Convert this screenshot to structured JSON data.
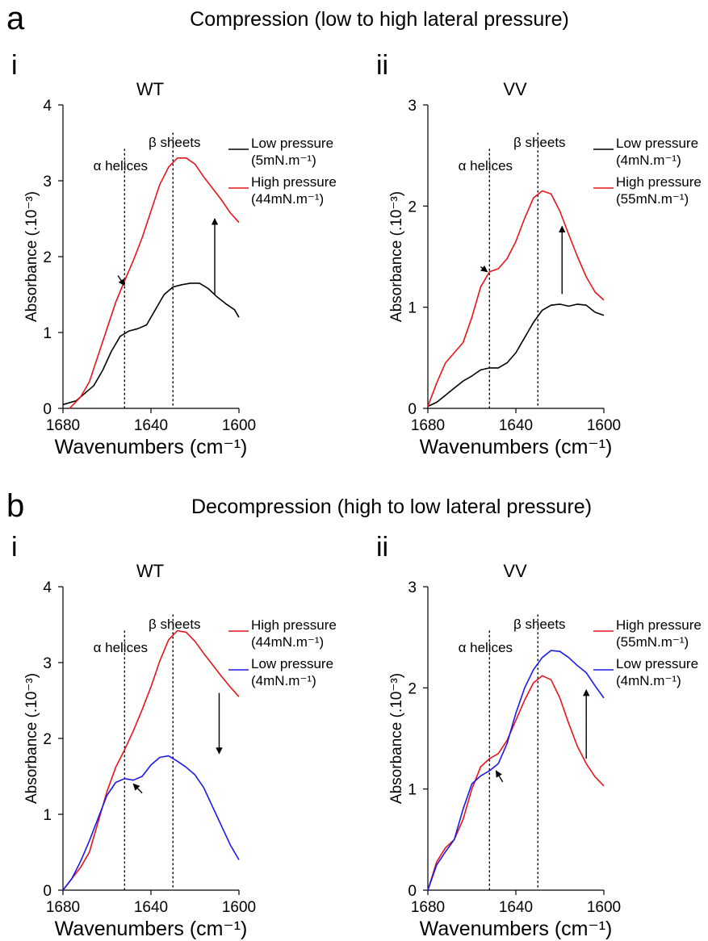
{
  "figure": {
    "section_a": {
      "letter": "a",
      "title": "Compression (low to high lateral pressure)"
    },
    "section_b": {
      "letter": "b",
      "title": "Decompression (high to low lateral pressure)"
    }
  },
  "colors": {
    "red": "#e8141a",
    "black": "#000000",
    "blue": "#1a1ae6"
  },
  "chart_data": [
    {
      "id": "a-i",
      "type": "line",
      "panel_label": "i",
      "title": "WT",
      "xlabel": "Wavenumbers (cm⁻¹)",
      "ylabel": "Absorbance (.10⁻³)",
      "xlim": [
        1680,
        1600
      ],
      "x_reversed": true,
      "ylim": [
        0,
        4
      ],
      "xticks": [
        1680,
        1640,
        1600
      ],
      "yticks": [
        0,
        1,
        2,
        3,
        4
      ],
      "vlines": [
        {
          "x": 1652,
          "label": "α helices"
        },
        {
          "x": 1630,
          "label": "β sheets"
        }
      ],
      "legend_position": "top-right",
      "series": [
        {
          "name": "Low pressure (5mN.m⁻¹)",
          "legend": [
            "Low pressure",
            "(5mN.m⁻¹)"
          ],
          "color": "#000000",
          "points": [
            [
              1680,
              0.05
            ],
            [
              1674,
              0.1
            ],
            [
              1670,
              0.2
            ],
            [
              1666,
              0.3
            ],
            [
              1662,
              0.5
            ],
            [
              1658,
              0.75
            ],
            [
              1654,
              0.95
            ],
            [
              1650,
              1.02
            ],
            [
              1646,
              1.05
            ],
            [
              1642,
              1.1
            ],
            [
              1638,
              1.3
            ],
            [
              1634,
              1.5
            ],
            [
              1630,
              1.6
            ],
            [
              1626,
              1.63
            ],
            [
              1622,
              1.65
            ],
            [
              1618,
              1.65
            ],
            [
              1614,
              1.58
            ],
            [
              1610,
              1.47
            ],
            [
              1606,
              1.38
            ],
            [
              1602,
              1.3
            ],
            [
              1600,
              1.2
            ]
          ]
        },
        {
          "name": "High pressure (44mN.m⁻¹)",
          "legend": [
            "High pressure",
            "(44mN.m⁻¹)"
          ],
          "color": "#e8141a",
          "points": [
            [
              1677,
              0
            ],
            [
              1672,
              0.15
            ],
            [
              1668,
              0.35
            ],
            [
              1664,
              0.7
            ],
            [
              1660,
              1.05
            ],
            [
              1656,
              1.4
            ],
            [
              1652,
              1.68
            ],
            [
              1648,
              1.95
            ],
            [
              1644,
              2.25
            ],
            [
              1640,
              2.6
            ],
            [
              1636,
              2.95
            ],
            [
              1632,
              3.18
            ],
            [
              1628,
              3.3
            ],
            [
              1624,
              3.3
            ],
            [
              1620,
              3.22
            ],
            [
              1616,
              3.05
            ],
            [
              1612,
              2.9
            ],
            [
              1608,
              2.75
            ],
            [
              1604,
              2.58
            ],
            [
              1600,
              2.45
            ]
          ]
        }
      ],
      "arrows": [
        {
          "kind": "vertical-up",
          "x": 1611,
          "from": 1.5,
          "to": 2.5
        },
        {
          "kind": "short",
          "x1": 1655,
          "y1": 1.75,
          "x2": 1652,
          "y2": 1.62
        }
      ]
    },
    {
      "id": "a-ii",
      "type": "line",
      "panel_label": "ii",
      "title": "VV",
      "xlabel": "Wavenumbers (cm⁻¹)",
      "ylabel": "Absorbance (.10⁻³)",
      "xlim": [
        1680,
        1600
      ],
      "x_reversed": true,
      "ylim": [
        0,
        3
      ],
      "xticks": [
        1680,
        1640,
        1600
      ],
      "yticks": [
        0,
        1,
        2,
        3
      ],
      "vlines": [
        {
          "x": 1652,
          "label": "α helices"
        },
        {
          "x": 1630,
          "label": "β sheets"
        }
      ],
      "legend_position": "top-right",
      "series": [
        {
          "name": "Low pressure (4mN.m⁻¹)",
          "legend": [
            "Low pressure",
            "(4mN.m⁻¹)"
          ],
          "color": "#000000",
          "points": [
            [
              1680,
              0.02
            ],
            [
              1676,
              0.06
            ],
            [
              1672,
              0.13
            ],
            [
              1668,
              0.2
            ],
            [
              1664,
              0.27
            ],
            [
              1660,
              0.32
            ],
            [
              1656,
              0.38
            ],
            [
              1652,
              0.4
            ],
            [
              1648,
              0.4
            ],
            [
              1644,
              0.45
            ],
            [
              1640,
              0.55
            ],
            [
              1636,
              0.7
            ],
            [
              1632,
              0.85
            ],
            [
              1628,
              0.97
            ],
            [
              1624,
              1.02
            ],
            [
              1620,
              1.03
            ],
            [
              1616,
              1.01
            ],
            [
              1612,
              1.03
            ],
            [
              1608,
              1.02
            ],
            [
              1604,
              0.95
            ],
            [
              1600,
              0.92
            ]
          ]
        },
        {
          "name": "High pressure (55mN.m⁻¹)",
          "legend": [
            "High pressure",
            "(55mN.m⁻¹)"
          ],
          "color": "#e8141a",
          "points": [
            [
              1680,
              0.02
            ],
            [
              1676,
              0.25
            ],
            [
              1672,
              0.45
            ],
            [
              1668,
              0.55
            ],
            [
              1664,
              0.65
            ],
            [
              1660,
              0.9
            ],
            [
              1656,
              1.2
            ],
            [
              1652,
              1.35
            ],
            [
              1648,
              1.38
            ],
            [
              1644,
              1.48
            ],
            [
              1640,
              1.65
            ],
            [
              1636,
              1.88
            ],
            [
              1632,
              2.08
            ],
            [
              1628,
              2.15
            ],
            [
              1624,
              2.12
            ],
            [
              1620,
              1.95
            ],
            [
              1616,
              1.72
            ],
            [
              1612,
              1.5
            ],
            [
              1608,
              1.3
            ],
            [
              1604,
              1.15
            ],
            [
              1600,
              1.07
            ]
          ]
        }
      ],
      "arrows": [
        {
          "kind": "vertical-up",
          "x": 1619,
          "from": 1.13,
          "to": 1.8
        },
        {
          "kind": "short",
          "x1": 1656,
          "y1": 1.4,
          "x2": 1653,
          "y2": 1.35
        }
      ]
    },
    {
      "id": "b-i",
      "type": "line",
      "panel_label": "i",
      "title": "WT",
      "xlabel": "Wavenumbers (cm⁻¹)",
      "ylabel": "Absorbance (.10⁻³)",
      "xlim": [
        1680,
        1600
      ],
      "x_reversed": true,
      "ylim": [
        0,
        4
      ],
      "xticks": [
        1680,
        1640,
        1600
      ],
      "yticks": [
        0,
        1,
        2,
        3,
        4
      ],
      "vlines": [
        {
          "x": 1652,
          "label": "α helices"
        },
        {
          "x": 1630,
          "label": "β sheets"
        }
      ],
      "legend_position": "top-right",
      "series": [
        {
          "name": "High pressure (44mN.m⁻¹)",
          "legend": [
            "High pressure",
            "(44mN.m⁻¹)"
          ],
          "color": "#e8141a",
          "points": [
            [
              1680,
              0
            ],
            [
              1676,
              0.15
            ],
            [
              1672,
              0.3
            ],
            [
              1668,
              0.5
            ],
            [
              1664,
              0.9
            ],
            [
              1660,
              1.3
            ],
            [
              1656,
              1.62
            ],
            [
              1652,
              1.85
            ],
            [
              1648,
              2.1
            ],
            [
              1644,
              2.38
            ],
            [
              1640,
              2.68
            ],
            [
              1636,
              3.02
            ],
            [
              1632,
              3.3
            ],
            [
              1628,
              3.42
            ],
            [
              1624,
              3.4
            ],
            [
              1620,
              3.28
            ],
            [
              1616,
              3.12
            ],
            [
              1612,
              2.97
            ],
            [
              1608,
              2.82
            ],
            [
              1604,
              2.68
            ],
            [
              1600,
              2.55
            ]
          ]
        },
        {
          "name": "Low pressure (4mN.m⁻¹)",
          "legend": [
            "Low pressure",
            "(4mN.m⁻¹)"
          ],
          "color": "#1a1ae6",
          "points": [
            [
              1680,
              0
            ],
            [
              1676,
              0.15
            ],
            [
              1672,
              0.38
            ],
            [
              1668,
              0.65
            ],
            [
              1664,
              0.95
            ],
            [
              1660,
              1.25
            ],
            [
              1656,
              1.42
            ],
            [
              1652,
              1.47
            ],
            [
              1648,
              1.45
            ],
            [
              1644,
              1.5
            ],
            [
              1640,
              1.65
            ],
            [
              1636,
              1.75
            ],
            [
              1632,
              1.77
            ],
            [
              1628,
              1.7
            ],
            [
              1624,
              1.62
            ],
            [
              1620,
              1.52
            ],
            [
              1616,
              1.35
            ],
            [
              1612,
              1.1
            ],
            [
              1608,
              0.85
            ],
            [
              1604,
              0.6
            ],
            [
              1600,
              0.4
            ]
          ]
        }
      ],
      "arrows": [
        {
          "kind": "vertical-down",
          "x": 1609,
          "from": 2.6,
          "to": 1.8
        },
        {
          "kind": "short",
          "x1": 1644,
          "y1": 1.28,
          "x2": 1648,
          "y2": 1.4
        }
      ]
    },
    {
      "id": "b-ii",
      "type": "line",
      "panel_label": "ii",
      "title": "VV",
      "xlabel": "Wavenumbers (cm⁻¹)",
      "ylabel": "Absorbance (.10⁻³)",
      "xlim": [
        1680,
        1600
      ],
      "x_reversed": true,
      "ylim": [
        0,
        3
      ],
      "xticks": [
        1680,
        1640,
        1600
      ],
      "yticks": [
        0,
        1,
        2,
        3
      ],
      "vlines": [
        {
          "x": 1652,
          "label": "α helices"
        },
        {
          "x": 1630,
          "label": "β sheets"
        }
      ],
      "legend_position": "top-right",
      "series": [
        {
          "name": "High pressure (55mN.m⁻¹)",
          "legend": [
            "High pressure",
            "(55mN.m⁻¹)"
          ],
          "color": "#e8141a",
          "points": [
            [
              1680,
              0
            ],
            [
              1676,
              0.28
            ],
            [
              1672,
              0.42
            ],
            [
              1668,
              0.5
            ],
            [
              1664,
              0.7
            ],
            [
              1660,
              1.0
            ],
            [
              1656,
              1.22
            ],
            [
              1652,
              1.3
            ],
            [
              1648,
              1.35
            ],
            [
              1644,
              1.48
            ],
            [
              1640,
              1.68
            ],
            [
              1636,
              1.88
            ],
            [
              1632,
              2.05
            ],
            [
              1628,
              2.12
            ],
            [
              1624,
              2.08
            ],
            [
              1620,
              1.9
            ],
            [
              1616,
              1.65
            ],
            [
              1612,
              1.42
            ],
            [
              1608,
              1.25
            ],
            [
              1604,
              1.12
            ],
            [
              1600,
              1.03
            ]
          ]
        },
        {
          "name": "Low pressure (4mN.m⁻¹)",
          "legend": [
            "Low pressure",
            "(4mN.m⁻¹)"
          ],
          "color": "#1a1ae6",
          "points": [
            [
              1680,
              0
            ],
            [
              1676,
              0.25
            ],
            [
              1672,
              0.38
            ],
            [
              1668,
              0.5
            ],
            [
              1664,
              0.8
            ],
            [
              1660,
              1.05
            ],
            [
              1656,
              1.13
            ],
            [
              1652,
              1.18
            ],
            [
              1648,
              1.25
            ],
            [
              1644,
              1.45
            ],
            [
              1640,
              1.75
            ],
            [
              1636,
              2.0
            ],
            [
              1632,
              2.18
            ],
            [
              1628,
              2.3
            ],
            [
              1624,
              2.37
            ],
            [
              1620,
              2.36
            ],
            [
              1616,
              2.3
            ],
            [
              1612,
              2.22
            ],
            [
              1608,
              2.15
            ],
            [
              1604,
              2.02
            ],
            [
              1600,
              1.9
            ]
          ]
        }
      ],
      "arrows": [
        {
          "kind": "vertical-up",
          "x": 1608,
          "from": 1.3,
          "to": 1.98
        },
        {
          "kind": "short",
          "x1": 1646,
          "y1": 1.07,
          "x2": 1649,
          "y2": 1.18
        }
      ]
    }
  ]
}
